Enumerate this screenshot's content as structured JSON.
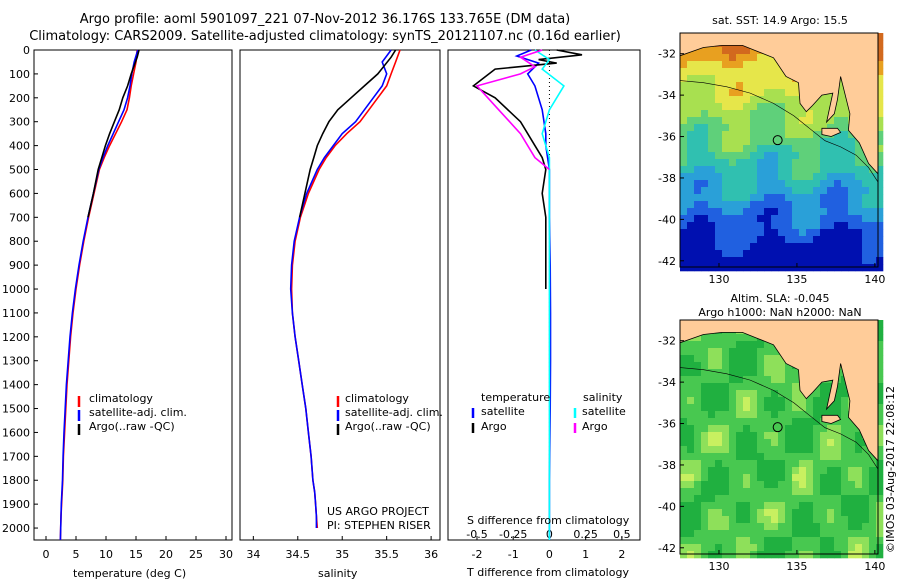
{
  "title_line1": "Argo profile: aoml 5901097_221 07-Nov-2012 36.176S 133.765E (DM data)",
  "title_line2": "Climatology: CARS2009. Satellite-adjusted climatology: synTS_20121107.nc (0.16d earlier)",
  "project_line1": "US ARGO PROJECT",
  "project_line2": "PI: STEPHEN RISER",
  "credit": "©IMOS 03-Aug-2017 22:08:12",
  "colors": {
    "climatology": "#ff0000",
    "satellite": "#0000ff",
    "argo": "#000000",
    "salinity_satellite": "#00ffff",
    "salinity_argo": "#ff00ff",
    "land": "#ffcc99",
    "coast": "#000000"
  },
  "depth_axis": {
    "ticks": [
      "0",
      "100",
      "200",
      "300",
      "400",
      "500",
      "600",
      "700",
      "800",
      "900",
      "1000",
      "1100",
      "1200",
      "1300",
      "1400",
      "1500",
      "1600",
      "1700",
      "1800",
      "1900",
      "2000"
    ],
    "range": [
      0,
      2050
    ]
  },
  "map_top": {
    "title": "sat. SST: 14.9 Argo: 15.5",
    "x_ticks": [
      "130",
      "135",
      "140"
    ],
    "y_ticks": [
      "-32",
      "-34",
      "-36",
      "-38",
      "-40",
      "-42"
    ]
  },
  "map_bottom": {
    "title_line1": "Altim. SLA: -0.045",
    "title_line2": "Argo h1000: NaN h2000: NaN",
    "x_ticks": [
      "130",
      "135",
      "140"
    ],
    "y_ticks": [
      "-32",
      "-34",
      "-36",
      "-38",
      "-40",
      "-42"
    ]
  },
  "chart_data": [
    {
      "type": "line",
      "xlabel": "temperature (deg C)",
      "ylabel": "",
      "x_ticks": [
        "0",
        "5",
        "10",
        "15",
        "20",
        "25",
        "30"
      ],
      "xlim": [
        -2,
        31
      ],
      "ylim": [
        2050,
        0
      ],
      "legend": [
        "climatology",
        "satellite-adj. clim.",
        "Argo(..raw -QC)"
      ],
      "series": [
        {
          "name": "climatology",
          "x": [
            15.2,
            15.0,
            14.6,
            14.2,
            13.9,
            13.5,
            12.6,
            11.6,
            10.6,
            9.7,
            8.9,
            8.0,
            7.1,
            6.3,
            5.6,
            5.0,
            4.5,
            4.1,
            3.8,
            3.5,
            3.3,
            3.1,
            2.9,
            2.8,
            2.7,
            2.6,
            2.5,
            2.45,
            2.4
          ],
          "y": [
            0,
            50,
            100,
            150,
            200,
            250,
            300,
            350,
            400,
            450,
            500,
            600,
            700,
            800,
            900,
            1000,
            1100,
            1200,
            1300,
            1400,
            1500,
            1600,
            1700,
            1800,
            1850,
            1900,
            1950,
            2000,
            2050
          ]
        },
        {
          "name": "satellite-adj. clim.",
          "x": [
            15.3,
            14.7,
            14.3,
            14.0,
            13.6,
            13.0,
            12.1,
            11.2,
            10.3,
            9.5,
            8.8,
            7.9,
            7.0,
            6.2,
            5.5,
            4.9,
            4.4,
            4.0,
            3.7,
            3.4,
            3.2,
            3.0,
            2.85,
            2.75,
            2.65,
            2.55,
            2.5,
            2.45,
            2.4
          ],
          "y": [
            0,
            50,
            100,
            150,
            200,
            250,
            300,
            350,
            400,
            450,
            500,
            600,
            700,
            800,
            900,
            1000,
            1100,
            1200,
            1300,
            1400,
            1500,
            1600,
            1700,
            1800,
            1850,
            1900,
            1950,
            2000,
            2050
          ]
        },
        {
          "name": "Argo(..raw -QC)",
          "x": [
            15.5,
            15.2,
            14.2,
            13.6,
            12.8,
            12.2,
            11.4,
            10.6,
            9.9,
            9.3,
            8.7,
            7.9,
            7.0
          ],
          "y": [
            0,
            30,
            100,
            150,
            200,
            250,
            300,
            350,
            400,
            450,
            500,
            600,
            700
          ]
        }
      ]
    },
    {
      "type": "line",
      "xlabel": "salinity",
      "ylabel": "",
      "x_ticks": [
        "34",
        "34.5",
        "35",
        "35.5",
        "36"
      ],
      "xlim": [
        33.85,
        36.1
      ],
      "ylim": [
        2050,
        0
      ],
      "legend": [
        "climatology",
        "satellite-adj. clim.",
        "Argo(..raw -QC)"
      ],
      "series": [
        {
          "name": "climatology",
          "x": [
            35.65,
            35.6,
            35.55,
            35.5,
            35.4,
            35.3,
            35.2,
            35.05,
            34.92,
            34.82,
            34.74,
            34.62,
            34.53,
            34.47,
            34.44,
            34.43,
            34.44,
            34.47,
            34.51,
            34.55,
            34.59,
            34.62,
            34.65,
            34.67,
            34.69,
            34.7,
            34.71,
            34.72
          ],
          "y": [
            0,
            50,
            100,
            150,
            200,
            250,
            300,
            350,
            400,
            450,
            500,
            600,
            700,
            800,
            900,
            1000,
            1100,
            1200,
            1300,
            1400,
            1500,
            1600,
            1700,
            1800,
            1850,
            1900,
            1950,
            2000
          ]
        },
        {
          "name": "satellite-adj. clim.",
          "x": [
            35.55,
            35.45,
            35.5,
            35.45,
            35.35,
            35.25,
            35.15,
            35.0,
            34.9,
            34.8,
            34.72,
            34.6,
            34.52,
            34.46,
            34.43,
            34.42,
            34.44,
            34.47,
            34.51,
            34.55,
            34.59,
            34.62,
            34.65,
            34.67,
            34.69,
            34.7,
            34.71,
            34.71
          ],
          "y": [
            0,
            50,
            100,
            150,
            200,
            250,
            300,
            350,
            400,
            450,
            500,
            600,
            700,
            800,
            900,
            1000,
            1100,
            1200,
            1300,
            1400,
            1500,
            1600,
            1700,
            1800,
            1850,
            1900,
            1950,
            2000
          ]
        },
        {
          "name": "Argo(..raw -QC)",
          "x": [
            35.6,
            35.55,
            35.4,
            35.25,
            35.1,
            34.95,
            34.85,
            34.78,
            34.72,
            34.68,
            34.64,
            34.58,
            34.52
          ],
          "y": [
            0,
            30,
            100,
            150,
            200,
            250,
            300,
            350,
            400,
            450,
            500,
            600,
            700
          ]
        }
      ]
    },
    {
      "type": "line",
      "xlabel": "T difference from climatology",
      "xlabel_top": "S difference from climatology",
      "x_ticks": [
        "-2",
        "-1",
        "0",
        "1",
        "2"
      ],
      "x_ticks_top": [
        "-0.5",
        "-0.25",
        "0",
        "0.25",
        "0.5"
      ],
      "xlim": [
        -2.8,
        2.5
      ],
      "ylim": [
        2050,
        0
      ],
      "legend_left_title": "temperature",
      "legend_right_title": "salinity",
      "legend_left": [
        "satellite",
        "Argo"
      ],
      "legend_right": [
        "satellite",
        "Argo"
      ],
      "series": [
        {
          "name": "T satellite",
          "x": [
            -0.5,
            -0.9,
            -0.3,
            -0.6,
            -0.4,
            -0.2,
            -0.1,
            -0.1,
            -0.05,
            0,
            0,
            0.02,
            0.03,
            0.03,
            0.02,
            0,
            0
          ],
          "y": [
            0,
            25,
            55,
            100,
            150,
            250,
            350,
            400,
            450,
            500,
            700,
            900,
            1100,
            1300,
            1500,
            1800,
            2050
          ]
        },
        {
          "name": "T Argo",
          "x": [
            0.2,
            0.9,
            -0.3,
            0.2,
            -1.5,
            -2.1,
            -1.5,
            -0.8,
            -0.4,
            -0.2,
            -0.1,
            -0.2,
            -0.1,
            -0.1
          ],
          "y": [
            0,
            20,
            40,
            55,
            80,
            150,
            200,
            300,
            400,
            450,
            500,
            600,
            700,
            1000
          ]
        },
        {
          "name": "S satellite",
          "x": [
            -0.1,
            0.0,
            -0.05,
            0.1,
            0,
            -0.05,
            0,
            0,
            0,
            0
          ],
          "y": [
            0,
            40,
            80,
            150,
            250,
            350,
            450,
            700,
            1200,
            2050
          ]
        },
        {
          "name": "S Argo",
          "x": [
            -0.05,
            -0.2,
            -0.1,
            -0.2,
            -0.5,
            -0.35,
            -0.2,
            -0.1,
            0
          ],
          "y": [
            0,
            30,
            70,
            100,
            150,
            250,
            350,
            450,
            500
          ]
        }
      ]
    }
  ]
}
